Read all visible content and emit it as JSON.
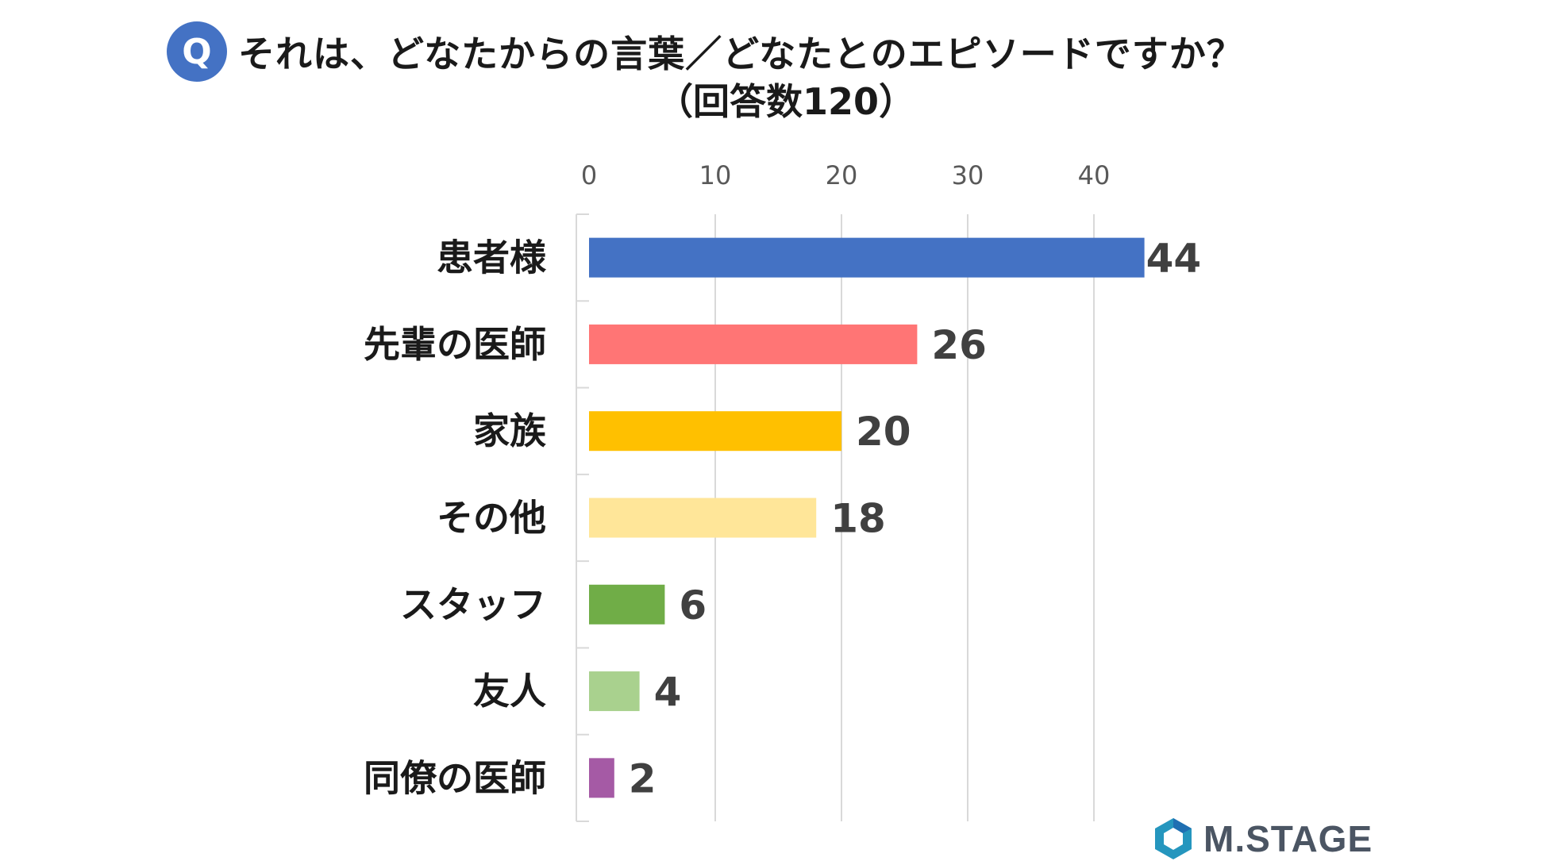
{
  "header": {
    "badge": "Q",
    "title": "それは、どなたからの言葉／どなたとのエピソードですか？",
    "subtitle": "（回答数120）"
  },
  "chart_data": {
    "type": "bar",
    "orientation": "horizontal",
    "categories": [
      "患者様",
      "先輩の医師",
      "家族",
      "その他",
      "スタッフ",
      "友人",
      "同僚の医師"
    ],
    "values": [
      44,
      26,
      20,
      18,
      6,
      4,
      2
    ],
    "colors": [
      "#4472c4",
      "#ff7575",
      "#ffc000",
      "#ffe699",
      "#70ad47",
      "#a9d18e",
      "#a55aa5"
    ],
    "xlim": [
      0,
      48
    ],
    "xticks": [
      0,
      10,
      20,
      30,
      40
    ],
    "grid": true,
    "axis_position": "top"
  },
  "logo": {
    "text": "M.STAGE",
    "colors": [
      "#2596be",
      "#1f6fb2"
    ]
  }
}
